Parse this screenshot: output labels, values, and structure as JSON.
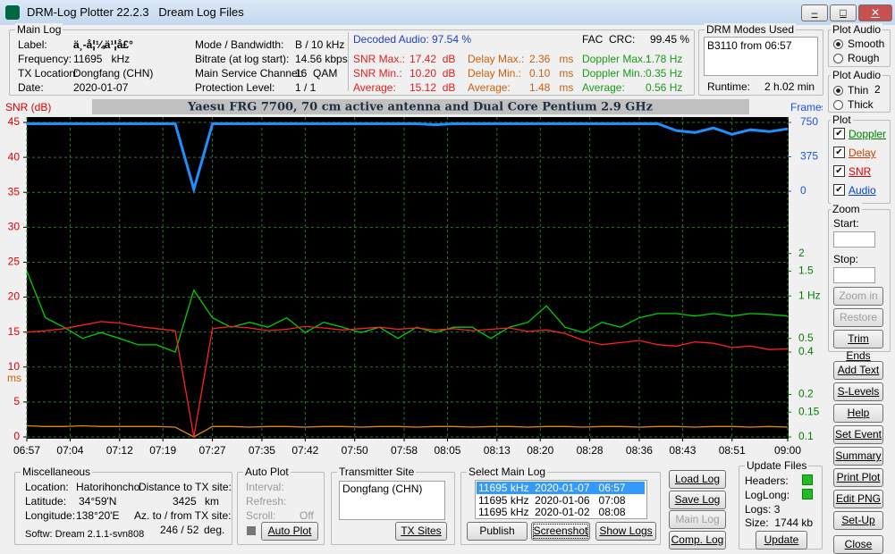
{
  "window": {
    "title": "DRM-Log Plotter 22.2.3   Dream Log Files"
  },
  "main_log": {
    "legend": "Main Log",
    "left": [
      [
        "Label:",
        "ä¸-å¦¼ä¹¦å£°"
      ],
      [
        "Frequency:",
        "11695   kHz"
      ],
      [
        "TX Location:",
        "Dongfang (CHN)"
      ],
      [
        "Date:",
        "2020-01-07"
      ]
    ],
    "right": [
      [
        "Mode / Bandwidth:",
        "B / 10 kHz"
      ],
      [
        "Bitrate (at log start):",
        "14.56 kbps"
      ],
      [
        "Main Service Channel:",
        "16  QAM"
      ],
      [
        "Protection Level:",
        "1 / 1"
      ]
    ]
  },
  "stats": {
    "decoded_audio": [
      "Decoded Audio:",
      "97.54 %"
    ],
    "fac_crc": [
      "FAC  CRC:",
      "99.45 %"
    ],
    "snr": [
      [
        "SNR Max.:",
        "17.42  dB"
      ],
      [
        "SNR Min.:",
        "10.20  dB"
      ],
      [
        "Average:",
        "15.12  dB"
      ]
    ],
    "delay": [
      [
        "Delay Max.:",
        "2.36   ms"
      ],
      [
        "Delay Min.:",
        "0.10   ms"
      ],
      [
        "Average:",
        "1.48   ms"
      ]
    ],
    "doppler": [
      [
        "Doppler Max.:",
        "1.78 Hz"
      ],
      [
        "Doppler Min.:",
        "0.35 Hz"
      ],
      [
        "Average:",
        "0.56 Hz"
      ]
    ]
  },
  "drm_modes": {
    "legend": "DRM Modes Used",
    "items": [
      "B3110 from 06:57"
    ],
    "runtime": [
      "Runtime:",
      "2 h.02 min"
    ]
  },
  "plot_audio": {
    "legend": "Plot Audio",
    "options": [
      "Smooth",
      "Rough"
    ]
  },
  "plot_audio_width": {
    "legend": "Plot Audio",
    "options": [
      "Thin",
      "Thick"
    ],
    "value": "2"
  },
  "plot_panel": {
    "legend": "Plot"
  },
  "zoom": {
    "legend": "Zoom",
    "start": "Start:",
    "stop": "Stop:",
    "buttons": [
      "Zoom in",
      "Restore",
      "Trim Ends"
    ]
  },
  "side_buttons": [
    "Add Text",
    "S-Levels",
    "Help",
    "Set Event",
    "Summary",
    "Print Plot",
    "Edit PNG",
    "Set-Up"
  ],
  "close": "Close",
  "misc": {
    "legend": "Miscellaneous",
    "location": [
      "Location:",
      "Hatorihoncho"
    ],
    "distance": [
      "Distance to TX site:",
      "3425",
      "km"
    ],
    "latitude": [
      "Latitude:",
      "34°59'N"
    ],
    "longitude": [
      "Longitude:",
      "138°20'E"
    ],
    "azimuth": [
      "Az. to / from TX site:",
      "246 / 52",
      "deg."
    ],
    "software": "Softw: Dream 2.1.1-svn808"
  },
  "auto_plot": {
    "legend": "Auto Plot",
    "interval": "Interval:",
    "refresh": "Refresh:",
    "scroll": [
      "Scroll:",
      "Off"
    ],
    "button": "Auto Plot"
  },
  "transmitter": {
    "legend": "Transmitter Site",
    "items": [
      "Dongfang (CHN)"
    ],
    "button": "TX Sites"
  },
  "select_log": {
    "legend": "Select Main Log",
    "items": [
      "11695 kHz  2020-01-07   06:57",
      "11695 kHz  2020-01-06   07:08",
      "11695 kHz  2020-01-02   08:08"
    ],
    "buttons": [
      "Publish",
      "Screenshot",
      "Show Logs"
    ]
  },
  "log_buttons": [
    "Load Log",
    "Save Log",
    "Main Log",
    "Comp. Log"
  ],
  "update": {
    "legend": "Update Files",
    "headers": "Headers:",
    "loglong": "LogLong:",
    "logs": "Logs: 3",
    "size": "Size:  1744 kb",
    "button": "Update"
  },
  "chart_data": {
    "type": "line",
    "title": "Yaesu FRG 7700, 70 cm active antenna and Dual Core Pentium 2.9 GHz",
    "ylabel": "SNR (dB)",
    "y3label": "Frames",
    "delay_unit": "ms",
    "x": [
      "06:57",
      "07:00",
      "07:03",
      "07:06",
      "07:09",
      "07:12",
      "07:15",
      "07:18",
      "07:21",
      "07:24",
      "07:27",
      "07:30",
      "07:33",
      "07:36",
      "07:39",
      "07:42",
      "07:45",
      "07:48",
      "07:51",
      "07:54",
      "07:57",
      "08:00",
      "08:03",
      "08:06",
      "08:09",
      "08:12",
      "08:15",
      "08:18",
      "08:21",
      "08:24",
      "08:27",
      "08:30",
      "08:33",
      "08:36",
      "08:39",
      "08:42",
      "08:45",
      "08:48",
      "08:51",
      "08:54",
      "08:57",
      "09:00"
    ],
    "xlim": [
      "06:57",
      "09:00"
    ],
    "xticks": [
      "06:57",
      "07:04",
      "07:12",
      "07:19",
      "07:27",
      "07:35",
      "07:42",
      "07:50",
      "07:58",
      "08:05",
      "08:13",
      "08:20",
      "08:28",
      "08:36",
      "08:43",
      "08:51",
      "09:00"
    ],
    "ylim": [
      0,
      45
    ],
    "yticks": [
      0,
      5,
      10,
      15,
      20,
      25,
      30,
      35,
      40,
      45
    ],
    "y2lim": [
      0.1,
      17
    ],
    "y2log": true,
    "y2ticks": [
      0.1,
      0.15,
      0.2,
      0.4,
      0.5,
      {
        "value": 1,
        "label": "1 Hz"
      },
      1.5,
      2
    ],
    "y3lim": [
      -2679,
      750
    ],
    "y3ticks": [
      0,
      375,
      750
    ],
    "grid": true,
    "series": [
      {
        "name": "Doppler",
        "color": "#00d000",
        "label_color": "#008000",
        "axis": "y2",
        "values": [
          1.5,
          0.7,
          0.6,
          0.5,
          0.55,
          0.5,
          0.45,
          0.45,
          0.4,
          1.1,
          0.7,
          0.6,
          0.65,
          0.6,
          0.7,
          0.55,
          0.65,
          0.6,
          0.55,
          0.6,
          0.5,
          0.6,
          0.55,
          0.6,
          0.6,
          0.5,
          0.6,
          0.65,
          0.85,
          0.6,
          0.55,
          0.65,
          0.6,
          0.7,
          0.75,
          0.75,
          0.72,
          0.75,
          0.72,
          0.75,
          0.74,
          0.72
        ]
      },
      {
        "name": "Delay",
        "color": "#e08a00",
        "label_color": "#d04000",
        "axis": "y",
        "values": [
          1.6,
          1.5,
          1.5,
          1.6,
          1.5,
          1.5,
          1.5,
          1.5,
          1.4,
          0,
          1.5,
          1.5,
          1.4,
          1.5,
          1.5,
          1.4,
          1.5,
          1.5,
          1.4,
          1.5,
          1.5,
          1.4,
          1.5,
          1.5,
          1.4,
          1.5,
          1.5,
          1.4,
          1.5,
          1.5,
          1.4,
          1.5,
          1.5,
          1.4,
          1.5,
          1.5,
          1.4,
          1.5,
          1.5,
          1.4,
          1.5,
          1.4
        ]
      },
      {
        "name": "SNR",
        "color": "#ff2020",
        "label_color": "#e00000",
        "axis": "y",
        "values": [
          15,
          15.2,
          15.5,
          16,
          16.5,
          16.3,
          15.8,
          15.5,
          15.2,
          0,
          15.5,
          15.8,
          15.6,
          15.2,
          15.4,
          15.8,
          15.6,
          15.3,
          15.5,
          15.7,
          15.4,
          15.6,
          15.3,
          15.5,
          15.2,
          15.4,
          15.6,
          15.1,
          15.3,
          14.8,
          13.8,
          13.2,
          13.5,
          13.8,
          13.2,
          13,
          13.6,
          13.4,
          12.8,
          13,
          12.5,
          12.6
        ]
      },
      {
        "name": "Audio",
        "color": "#1e90ff",
        "label_color": "#0040e0",
        "axis": "y3",
        "values": [
          735,
          735,
          735,
          735,
          735,
          735,
          735,
          735,
          735,
          20,
          735,
          735,
          735,
          735,
          735,
          735,
          735,
          735,
          735,
          735,
          735,
          735,
          725,
          735,
          735,
          735,
          735,
          735,
          735,
          735,
          735,
          735,
          735,
          735,
          735,
          660,
          640,
          690,
          620,
          670,
          650,
          680
        ]
      }
    ]
  }
}
